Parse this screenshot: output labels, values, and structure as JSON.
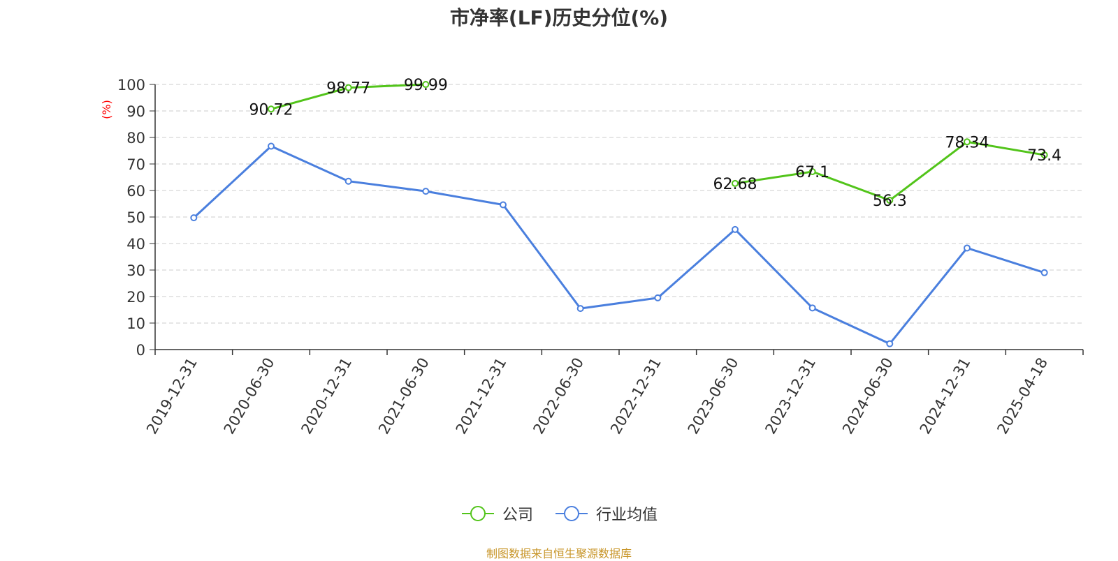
{
  "title": "市净率(LF)历史分位(%)",
  "source": "制图数据来自恒生聚源数据库",
  "colors": {
    "company": "#52c41a",
    "industry": "#4a7fde",
    "axis_unit": "#ff0000",
    "source": "#c8962a"
  },
  "chart_data": {
    "type": "line",
    "title": "市净率(LF)历史分位(%)",
    "ylabel": "(%)",
    "ylim": [
      0,
      100
    ],
    "y_ticks": [
      "0",
      "10",
      "20",
      "30",
      "40",
      "50",
      "60",
      "70",
      "80",
      "90",
      "100"
    ],
    "grid": true,
    "legend_position": "bottom",
    "categories": [
      "2019-12-31",
      "2020-06-30",
      "2020-12-31",
      "2021-06-30",
      "2021-12-31",
      "2022-06-30",
      "2022-12-31",
      "2023-06-30",
      "2023-12-31",
      "2024-06-30",
      "2024-12-31",
      "2025-04-18"
    ],
    "series": [
      {
        "name": "公司",
        "color": "#52c41a",
        "show_labels": true,
        "values": [
          null,
          90.72,
          98.77,
          99.99,
          null,
          null,
          null,
          62.68,
          67.1,
          56.3,
          78.34,
          73.4
        ]
      },
      {
        "name": "行业均值",
        "color": "#4a7fde",
        "show_labels": false,
        "values": [
          49.7,
          76.7,
          63.5,
          59.7,
          54.6,
          15.5,
          19.5,
          45.3,
          15.7,
          2.2,
          38.3,
          29.0
        ]
      }
    ]
  }
}
